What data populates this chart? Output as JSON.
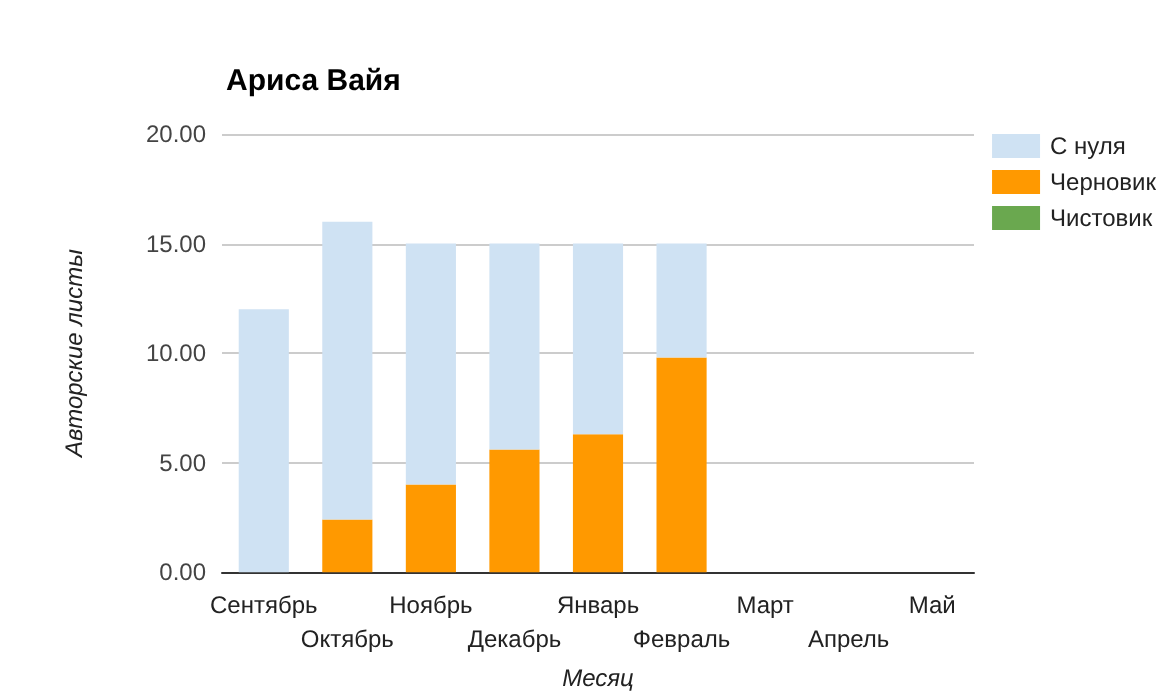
{
  "chart_data": {
    "type": "bar",
    "title": "Ариса Вайя",
    "xlabel": "Месяц",
    "ylabel": "Авторские листы",
    "categories": [
      "Сентябрь",
      "Октябрь",
      "Ноябрь",
      "Декабрь",
      "Январь",
      "Февраль",
      "Март",
      "Апрель",
      "Май"
    ],
    "stacked": true,
    "series": [
      {
        "name": "Черновик",
        "color": "#ff9900",
        "values": [
          0,
          2.4,
          4.0,
          5.6,
          6.3,
          9.8,
          null,
          null,
          null
        ]
      },
      {
        "name": "С нуля",
        "color": "#cfe2f3",
        "values": [
          12,
          13.6,
          11,
          9.4,
          8.7,
          5.2,
          null,
          null,
          null
        ]
      },
      {
        "name": "Чистовик",
        "color": "#6aa84f",
        "values": [
          0,
          0,
          0,
          0,
          0,
          0,
          null,
          null,
          null
        ]
      }
    ],
    "ylim": [
      0,
      20
    ],
    "yticks": [
      {
        "value": 0,
        "label": "0.00"
      },
      {
        "value": 5,
        "label": "5.00"
      },
      {
        "value": 10,
        "label": "10.00"
      },
      {
        "value": 15,
        "label": "15.00"
      },
      {
        "value": 20,
        "label": "20.00"
      }
    ],
    "grid": "y",
    "legend": "right"
  }
}
